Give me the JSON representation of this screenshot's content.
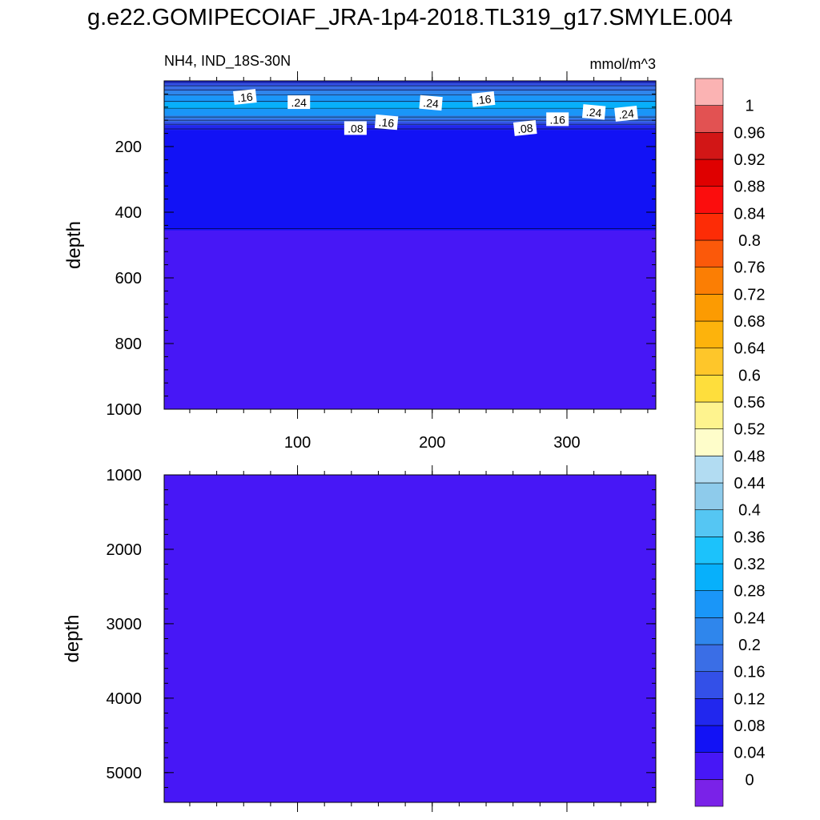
{
  "figure": {
    "title": "g.e22.GOMIPECOIAF_JRA-1p4-2018.TL319_g17.SMYLE.004"
  },
  "chart_data": {
    "type": "heatmap",
    "variable_label": "NH4, IND_18S-30N",
    "units": "mmol/m^3",
    "panels": [
      {
        "name": "upper",
        "ylabel": "depth",
        "xlim": [
          1,
          366
        ],
        "ylim": [
          1000,
          0
        ],
        "xticks": [
          100,
          200,
          300
        ],
        "yticks": [
          200,
          400,
          600,
          800,
          1000
        ],
        "contour_labels": [
          {
            "text": ".16",
            "x": 61,
            "depth": 50
          },
          {
            "text": ".24",
            "x": 101,
            "depth": 66
          },
          {
            "text": ".24",
            "x": 199,
            "depth": 68
          },
          {
            "text": ".16",
            "x": 238,
            "depth": 57
          },
          {
            "text": ".08",
            "x": 143,
            "depth": 145
          },
          {
            "text": ".16",
            "x": 166,
            "depth": 127
          },
          {
            "text": ".08",
            "x": 269,
            "depth": 145
          },
          {
            "text": ".16",
            "x": 293,
            "depth": 118
          },
          {
            "text": ".24",
            "x": 320,
            "depth": 96
          },
          {
            "text": ".24",
            "x": 344,
            "depth": 101
          }
        ],
        "profile": [
          {
            "depth": 0,
            "value": 0.1
          },
          {
            "depth": 20,
            "value": 0.18
          },
          {
            "depth": 50,
            "value": 0.26
          },
          {
            "depth": 75,
            "value": 0.3
          },
          {
            "depth": 100,
            "value": 0.24
          },
          {
            "depth": 125,
            "value": 0.14
          },
          {
            "depth": 150,
            "value": 0.07
          },
          {
            "depth": 175,
            "value": 0.05
          },
          {
            "depth": 1000,
            "value": 0.02
          }
        ]
      },
      {
        "name": "lower",
        "ylabel": "depth",
        "xlim": [
          1,
          366
        ],
        "ylim": [
          5400,
          1000
        ],
        "yticks": [
          1000,
          2000,
          3000,
          4000,
          5000
        ],
        "profile": [
          {
            "depth": 1000,
            "value": 0.02
          },
          {
            "depth": 5400,
            "value": 0.02
          }
        ]
      }
    ],
    "colorbar": {
      "levels": [
        0,
        0.04,
        0.08,
        0.12,
        0.16,
        0.2,
        0.24,
        0.28,
        0.32,
        0.36,
        0.4,
        0.44,
        0.48,
        0.52,
        0.56,
        0.6,
        0.64,
        0.68,
        0.72,
        0.76,
        0.8,
        0.84,
        0.88,
        0.92,
        0.96,
        1
      ],
      "level_labels": [
        "0",
        "0.04",
        "0.08",
        "0.12",
        "0.16",
        "0.2",
        "0.24",
        "0.28",
        "0.32",
        "0.36",
        "0.4",
        "0.44",
        "0.48",
        "0.52",
        "0.56",
        "0.6",
        "0.64",
        "0.68",
        "0.72",
        "0.76",
        "0.8",
        "0.84",
        "0.88",
        "0.92",
        "0.96",
        "1"
      ],
      "colors": [
        "#7a22e8",
        "#4717f6",
        "#1212f5",
        "#2127ee",
        "#3350e8",
        "#3a6ee6",
        "#2f86ec",
        "#1a96f8",
        "#07b0fb",
        "#1cc2fb",
        "#55c6f3",
        "#8ecbeb",
        "#b2dcf2",
        "#fefdca",
        "#fef38e",
        "#fede3c",
        "#fec62a",
        "#fdb30c",
        "#fc9b02",
        "#fb7e04",
        "#fb590a",
        "#fd2c06",
        "#fb0d0d",
        "#df0000",
        "#d21616",
        "#e25252",
        "#fbb3b3"
      ]
    }
  }
}
